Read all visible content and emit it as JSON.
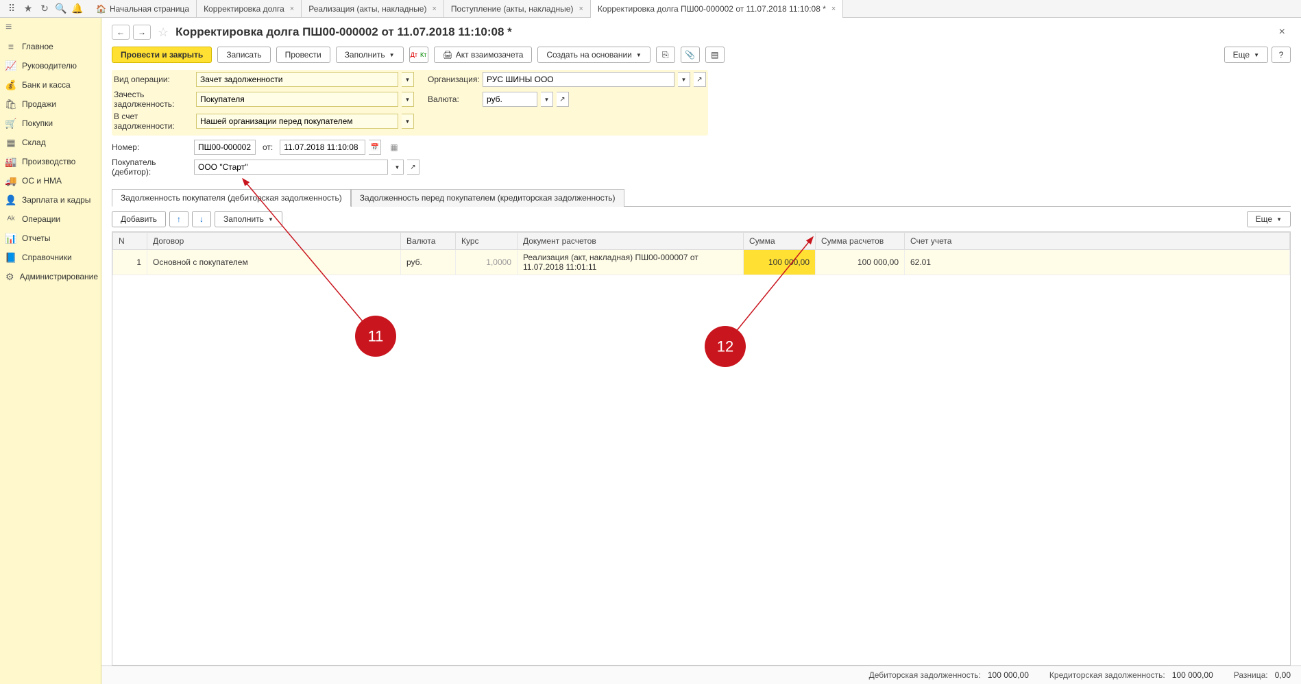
{
  "top_tabs": [
    {
      "label": "Начальная страница",
      "home": true,
      "closable": false
    },
    {
      "label": "Корректировка долга",
      "closable": true
    },
    {
      "label": "Реализация (акты, накладные)",
      "closable": true
    },
    {
      "label": "Поступление (акты, накладные)",
      "closable": true
    },
    {
      "label": "Корректировка долга ПШ00-000002 от 11.07.2018 11:10:08 *",
      "closable": true,
      "active": true
    }
  ],
  "sidebar": {
    "items": [
      {
        "icon": "≡",
        "label": "Главное"
      },
      {
        "icon": "📈",
        "label": "Руководителю"
      },
      {
        "icon": "💰",
        "label": "Банк и касса"
      },
      {
        "icon": "🛍",
        "label": "Продажи"
      },
      {
        "icon": "🛒",
        "label": "Покупки"
      },
      {
        "icon": "▦",
        "label": "Склад"
      },
      {
        "icon": "🏭",
        "label": "Производство"
      },
      {
        "icon": "🚚",
        "label": "ОС и НМА"
      },
      {
        "icon": "👤",
        "label": "Зарплата и кадры"
      },
      {
        "icon": "ᴬᵏ",
        "label": "Операции"
      },
      {
        "icon": "📊",
        "label": "Отчеты"
      },
      {
        "icon": "📘",
        "label": "Справочники"
      },
      {
        "icon": "⚙",
        "label": "Администрирование"
      }
    ]
  },
  "page": {
    "title": "Корректировка долга ПШ00-000002 от 11.07.2018 11:10:08 *"
  },
  "cmdbar": {
    "post_close": "Провести и закрыть",
    "save": "Записать",
    "post": "Провести",
    "fill": "Заполнить",
    "act": "Акт взаимозачета",
    "create_based": "Создать на основании",
    "more": "Еще"
  },
  "form": {
    "op_type_label": "Вид операции:",
    "op_type": "Зачет задолженности",
    "offset_label": "Зачесть задолженность:",
    "offset": "Покупателя",
    "against_label": "В счет задолженности:",
    "against": "Нашей организации перед покупателем",
    "org_label": "Организация:",
    "org": "РУС ШИНЫ ООО",
    "currency_label": "Валюта:",
    "currency": "руб.",
    "number_label": "Номер:",
    "number": "ПШ00-000002",
    "from_label": "от:",
    "date": "11.07.2018 11:10:08",
    "buyer_label": "Покупатель (дебитор):",
    "buyer": "ООО \"Старт\""
  },
  "doc_tabs": {
    "tab1": "Задолженность покупателя (дебиторская задолженность)",
    "tab2": "Задолженность перед покупателем (кредиторская задолженность)"
  },
  "tbl_toolbar": {
    "add": "Добавить",
    "fill": "Заполнить",
    "more": "Еще"
  },
  "table": {
    "cols": {
      "n": "N",
      "contract": "Договор",
      "currency": "Валюта",
      "rate": "Курс",
      "doc": "Документ расчетов",
      "sum": "Сумма",
      "sum_calc": "Сумма расчетов",
      "account": "Счет учета"
    },
    "row": {
      "n": "1",
      "contract": "Основной с покупателем",
      "currency": "руб.",
      "rate": "1,0000",
      "doc": "Реализация (акт, накладная) ПШ00-000007 от 11.07.2018 11:01:11",
      "sum": "100 000,00",
      "sum_calc": "100 000,00",
      "account": "62.01"
    }
  },
  "footer": {
    "debit_label": "Дебиторская задолженность:",
    "debit": "100 000,00",
    "credit_label": "Кредиторская задолженность:",
    "credit": "100 000,00",
    "diff_label": "Разница:",
    "diff": "0,00"
  },
  "annotations": {
    "a11": "11",
    "a12": "12"
  }
}
